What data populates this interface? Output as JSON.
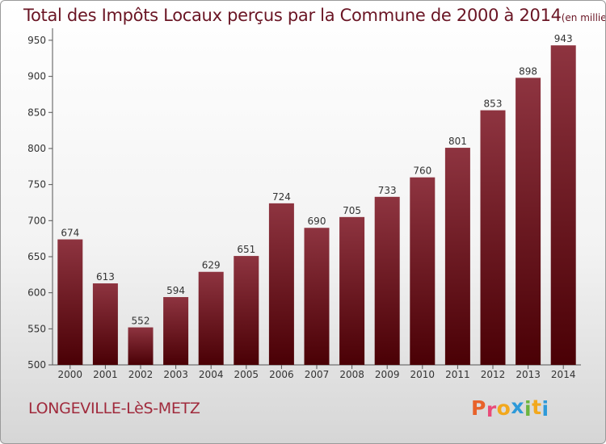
{
  "chart_data": {
    "type": "bar",
    "title": "Total des Impôts Locaux perçus par la Commune de 2000 à 2014",
    "subtitle": "(en milliers d'€)",
    "categories": [
      "2000",
      "2001",
      "2002",
      "2003",
      "2004",
      "2005",
      "2006",
      "2007",
      "2008",
      "2009",
      "2010",
      "2011",
      "2012",
      "2013",
      "2014"
    ],
    "values": [
      674,
      613,
      552,
      594,
      629,
      651,
      724,
      690,
      705,
      733,
      760,
      801,
      853,
      898,
      943
    ],
    "xlabel": "",
    "ylabel": "",
    "ylim": [
      500,
      960
    ],
    "yticks": [
      500,
      550,
      600,
      650,
      700,
      750,
      800,
      850,
      900,
      950
    ],
    "grid": false,
    "bar_color_top": "#8e3440",
    "bar_color_bottom": "#4a0005"
  },
  "footer": {
    "commune": "LONGEVILLE-LèS-METZ",
    "logo_letters": [
      "P",
      "r",
      "o",
      "x",
      "i",
      "t",
      "i"
    ],
    "logo_colors": [
      "#e8622a",
      "#e94b7a",
      "#f2a81d",
      "#2e9ad9",
      "#6cb43f",
      "#f2a81d",
      "#2e9ad9"
    ]
  }
}
